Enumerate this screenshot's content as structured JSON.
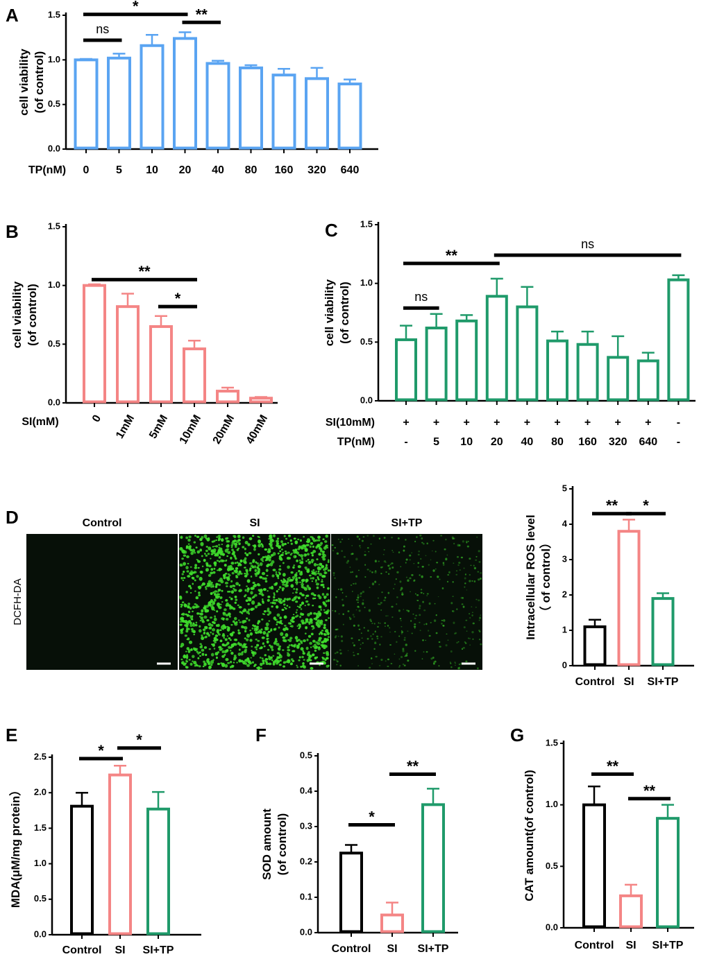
{
  "colors": {
    "blue": "#5aa4f2",
    "pink": "#f48585",
    "green": "#1f9a6a",
    "black": "#000000",
    "cell_green": "#3fdc2c",
    "micro_bg": "#071008"
  },
  "microscopy": {
    "panel_label": "D",
    "row_label": "DCFH-DA",
    "titles": [
      "Control",
      "SI",
      "SI+TP"
    ]
  },
  "chart_data": [
    {
      "panel": "A",
      "type": "bar",
      "color_key": "blue",
      "title": "",
      "ylabel": [
        "cell viability",
        "(of control)"
      ],
      "xlabel": "TP(nM)",
      "categories": [
        "0",
        "5",
        "10",
        "20",
        "40",
        "80",
        "160",
        "320",
        "640"
      ],
      "values": [
        1.0,
        1.02,
        1.16,
        1.24,
        0.96,
        0.91,
        0.83,
        0.79,
        0.73
      ],
      "errors": [
        0.01,
        0.05,
        0.12,
        0.07,
        0.03,
        0.03,
        0.07,
        0.12,
        0.05
      ],
      "ylim": [
        0,
        1.5
      ],
      "yticks": [
        "0.0",
        "0.5",
        "1.0",
        "1.5"
      ],
      "ytick_values": [
        0,
        0.5,
        1.0,
        1.5
      ],
      "significance": [
        {
          "from": 0,
          "to": 1,
          "label": "ns",
          "y": 1.22
        },
        {
          "from": 0,
          "to": 3,
          "label": "*",
          "y": 1.51
        },
        {
          "from": 3,
          "to": 4,
          "label": "**",
          "y": 1.42
        }
      ]
    },
    {
      "panel": "B",
      "type": "bar",
      "color_key": "pink",
      "title": "",
      "ylabel": [
        "cell viability",
        "(of control)"
      ],
      "xlabel": "SI(mM)",
      "categories": [
        "0",
        "1mM",
        "5mM",
        "10mM",
        "20mM",
        "40mM"
      ],
      "values": [
        1.0,
        0.82,
        0.65,
        0.46,
        0.1,
        0.04
      ],
      "errors": [
        0.01,
        0.11,
        0.09,
        0.07,
        0.03,
        0.01
      ],
      "ylim": [
        0,
        1.5
      ],
      "yticks": [
        "0.0",
        "0.5",
        "1.0",
        "1.5"
      ],
      "ytick_values": [
        0,
        0.5,
        1.0,
        1.5
      ],
      "significance": [
        {
          "from": 0,
          "to": 3,
          "label": "**",
          "y": 1.05
        },
        {
          "from": 2,
          "to": 3,
          "label": "*",
          "y": 0.82
        }
      ]
    },
    {
      "panel": "C",
      "type": "bar",
      "color_key": "green",
      "title": "",
      "ylabel": [
        "cell viability",
        "(of control)"
      ],
      "row1_label": "SI(10mM)",
      "row2_label": "TP(nM)",
      "row1": [
        "+",
        "+",
        "+",
        "+",
        "+",
        "+",
        "+",
        "+",
        "+",
        "-"
      ],
      "row2": [
        "-",
        "5",
        "10",
        "20",
        "40",
        "80",
        "160",
        "320",
        "640",
        "-"
      ],
      "values": [
        0.52,
        0.62,
        0.68,
        0.89,
        0.8,
        0.51,
        0.48,
        0.37,
        0.34,
        1.03
      ],
      "errors": [
        0.12,
        0.12,
        0.05,
        0.15,
        0.17,
        0.08,
        0.11,
        0.18,
        0.07,
        0.04
      ],
      "ylim": [
        0,
        1.5
      ],
      "yticks": [
        "0.0",
        "0.5",
        "1.0",
        "1.5"
      ],
      "ytick_values": [
        0,
        0.5,
        1.0,
        1.5
      ],
      "significance": [
        {
          "from": 0,
          "to": 1,
          "label": "ns",
          "y": 0.79
        },
        {
          "from": 0,
          "to": 3,
          "label": "**",
          "y": 1.17
        },
        {
          "from": 3,
          "to": 9,
          "label": "ns",
          "y": 1.24
        }
      ]
    },
    {
      "panel": "D-chart",
      "type": "bar",
      "ylabel": [
        "Intracellular ROS level",
        "（ of control）"
      ],
      "categories": [
        "Control",
        "SI",
        "SI+TP"
      ],
      "color_keys": [
        "black",
        "pink",
        "green"
      ],
      "values": [
        1.1,
        3.8,
        1.9
      ],
      "errors": [
        0.2,
        0.33,
        0.15
      ],
      "ylim": [
        0,
        5
      ],
      "yticks": [
        "0",
        "1",
        "2",
        "3",
        "4",
        "5"
      ],
      "ytick_values": [
        0,
        1,
        2,
        3,
        4,
        5
      ],
      "significance": [
        {
          "from": 0,
          "to": 1,
          "label": "**",
          "y": 4.3
        },
        {
          "from": 1,
          "to": 2,
          "label": "*",
          "y": 4.3
        }
      ]
    },
    {
      "panel": "E",
      "type": "bar",
      "ylabel": [
        "MDA(μM/mg protein）"
      ],
      "categories": [
        "Control",
        "SI",
        "SI+TP"
      ],
      "color_keys": [
        "black",
        "pink",
        "green"
      ],
      "values": [
        1.81,
        2.25,
        1.77
      ],
      "errors": [
        0.19,
        0.13,
        0.24
      ],
      "ylim": [
        0,
        2.5
      ],
      "yticks": [
        "0.0",
        "0.5",
        "1.0",
        "1.5",
        "2.0",
        "2.5"
      ],
      "ytick_values": [
        0,
        0.5,
        1.0,
        1.5,
        2.0,
        2.5
      ],
      "significance": [
        {
          "from": 0,
          "to": 1,
          "label": "*",
          "y": 2.48
        },
        {
          "from": 1,
          "to": 2,
          "label": "*",
          "y": 2.63
        }
      ]
    },
    {
      "panel": "F",
      "type": "bar",
      "ylabel": [
        "SOD amount",
        "(of control)"
      ],
      "categories": [
        "Control",
        "SI",
        "SI+TP"
      ],
      "color_keys": [
        "black",
        "pink",
        "green"
      ],
      "values": [
        0.225,
        0.05,
        0.362
      ],
      "errors": [
        0.023,
        0.035,
        0.045
      ],
      "ylim": [
        0,
        0.5
      ],
      "yticks": [
        "0.0",
        "0.1",
        "0.2",
        "0.3",
        "0.4",
        "0.5"
      ],
      "ytick_values": [
        0,
        0.1,
        0.2,
        0.3,
        0.4,
        0.5
      ],
      "significance": [
        {
          "from": 0,
          "to": 1,
          "label": "*",
          "y": 0.305
        },
        {
          "from": 1,
          "to": 2,
          "label": "**",
          "y": 0.448
        }
      ]
    },
    {
      "panel": "G",
      "type": "bar",
      "ylabel": [
        "CAT amount(of control)"
      ],
      "categories": [
        "Control",
        "SI",
        "SI+TP"
      ],
      "color_keys": [
        "black",
        "pink",
        "green"
      ],
      "values": [
        1.0,
        0.26,
        0.89
      ],
      "errors": [
        0.15,
        0.09,
        0.11
      ],
      "ylim": [
        0,
        1.5
      ],
      "yticks": [
        "0.0",
        "0.5",
        "1.0",
        "1.5"
      ],
      "ytick_values": [
        0,
        0.5,
        1.0,
        1.5
      ],
      "significance": [
        {
          "from": 0,
          "to": 1,
          "label": "**",
          "y": 1.25
        },
        {
          "from": 1,
          "to": 2,
          "label": "**",
          "y": 1.05
        }
      ]
    }
  ]
}
